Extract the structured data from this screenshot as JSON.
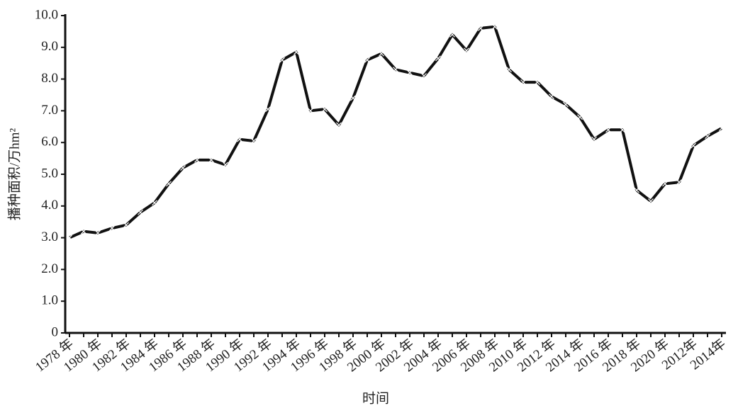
{
  "chart_data": {
    "type": "line",
    "y_label": "播种面积/万hm²",
    "x_label": "时间",
    "categories": [
      "1978 年",
      null,
      "1980 年",
      null,
      "1982 年",
      null,
      "1984 年",
      null,
      "1986 年",
      null,
      "1988 年",
      null,
      "1990 年",
      null,
      "1992 年",
      null,
      "1994 年",
      null,
      "1996 年",
      null,
      "1998 年",
      null,
      "2000 年",
      null,
      "2002 年",
      null,
      "2004 年",
      null,
      "2006 年",
      null,
      "2008 年",
      null,
      "2010 年",
      null,
      "2012 年",
      null,
      "2014 年",
      null,
      "2016 年",
      null,
      "2018 年",
      null,
      "2020 年",
      null,
      "2012年",
      null,
      "2014年"
    ],
    "values": [
      3.0,
      3.2,
      3.15,
      3.3,
      3.4,
      3.8,
      4.1,
      4.7,
      5.2,
      5.45,
      5.45,
      5.3,
      6.1,
      6.05,
      7.05,
      8.6,
      8.85,
      7.0,
      7.05,
      6.55,
      7.4,
      8.6,
      8.8,
      8.3,
      8.2,
      8.1,
      8.65,
      9.4,
      8.9,
      9.6,
      9.65,
      8.3,
      7.9,
      7.9,
      7.45,
      7.2,
      6.8,
      6.1,
      6.4,
      6.4,
      4.5,
      4.15,
      4.7,
      4.75,
      5.9,
      6.2,
      6.45
    ],
    "color": "#111111",
    "ylim": [
      0,
      10
    ],
    "yticks": [
      0,
      {
        "value": 1,
        "label": "1.0"
      },
      {
        "value": 2,
        "label": "2.0"
      },
      {
        "value": 3,
        "label": "3.0"
      },
      {
        "value": 4,
        "label": "4.0"
      },
      {
        "value": 5,
        "label": "5.0"
      },
      {
        "value": 6,
        "label": "6.0"
      },
      {
        "value": 7,
        "label": "7.0"
      },
      {
        "value": 8,
        "label": "8.0"
      },
      {
        "value": 9,
        "label": "9.0"
      },
      {
        "value": 10,
        "label": "10.0"
      }
    ]
  }
}
